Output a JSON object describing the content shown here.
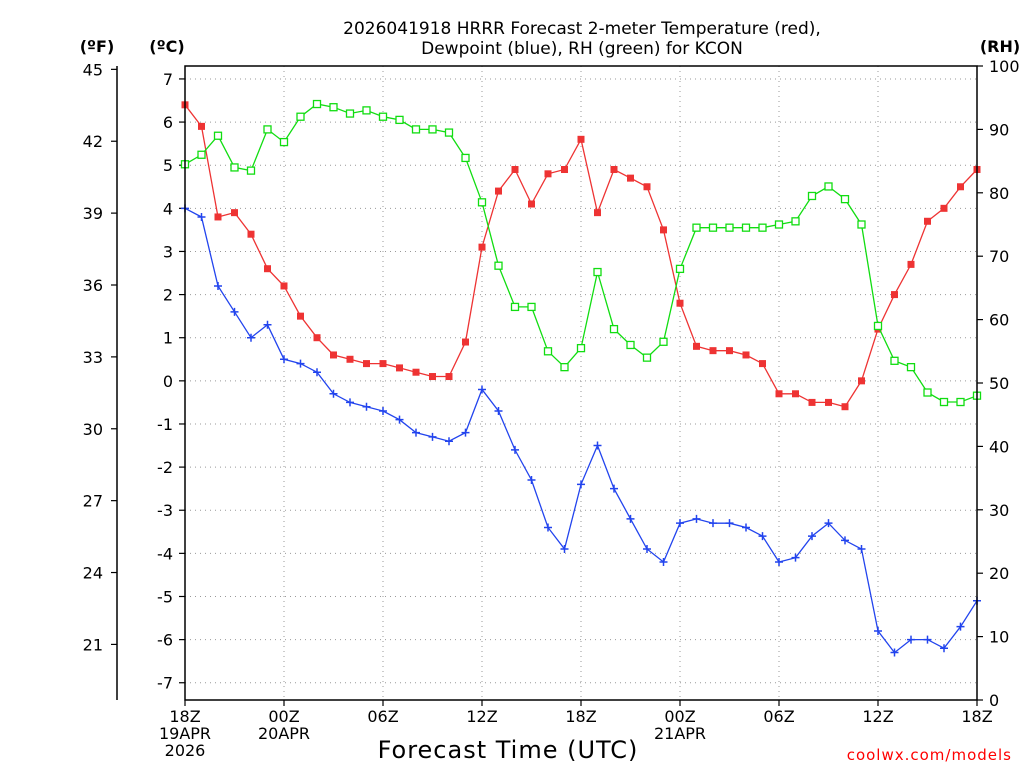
{
  "chart_data": {
    "type": "line",
    "title_lines": [
      "2026041918 HRRR Forecast 2-meter Temperature (red),",
      "Dewpoint (blue), RH (green) for KCON"
    ],
    "xlabel": "Forecast Time (UTC)",
    "credit": "coolwx.com/models",
    "units": {
      "left_f": "(ºF)",
      "left_c": "(ºC)",
      "right_rh": "(RH)"
    },
    "x_forecast_hours": {
      "start": 0,
      "end": 48,
      "step": 1
    },
    "xticks": [
      {
        "hour": 0,
        "lines": [
          "18Z",
          "19APR",
          "2026"
        ]
      },
      {
        "hour": 6,
        "lines": [
          "00Z",
          "20APR"
        ]
      },
      {
        "hour": 12,
        "lines": [
          "06Z"
        ]
      },
      {
        "hour": 18,
        "lines": [
          "12Z"
        ]
      },
      {
        "hour": 24,
        "lines": [
          "18Z"
        ]
      },
      {
        "hour": 30,
        "lines": [
          "00Z",
          "21APR"
        ]
      },
      {
        "hour": 36,
        "lines": [
          "06Z"
        ]
      },
      {
        "hour": 42,
        "lines": [
          "12Z"
        ]
      },
      {
        "hour": 48,
        "lines": [
          "18Z"
        ]
      }
    ],
    "celsius_axis": {
      "min": -7.4,
      "max": 7.3,
      "ticks": [
        -7,
        -6,
        -5,
        -4,
        -3,
        -2,
        -1,
        0,
        1,
        2,
        3,
        4,
        5,
        6,
        7
      ]
    },
    "fahrenheit_axis": {
      "ticks": [
        21,
        24,
        27,
        30,
        33,
        36,
        39,
        42,
        45
      ]
    },
    "rh_axis": {
      "min": 0,
      "max": 100,
      "ticks": [
        0,
        10,
        20,
        30,
        40,
        50,
        60,
        70,
        80,
        90,
        100
      ]
    },
    "grid": true,
    "series": [
      {
        "name": "Temperature",
        "unit": "C",
        "color": "#ee3333",
        "marker": "filled-square",
        "values": [
          6.4,
          5.9,
          3.8,
          3.9,
          3.4,
          2.6,
          2.2,
          1.5,
          1.0,
          0.6,
          0.5,
          0.4,
          0.4,
          0.3,
          0.2,
          0.1,
          0.1,
          0.9,
          3.1,
          4.4,
          4.9,
          4.1,
          4.8,
          4.9,
          5.6,
          3.9,
          4.9,
          4.7,
          4.5,
          3.5,
          1.8,
          0.8,
          0.7,
          0.7,
          0.6,
          0.4,
          -0.3,
          -0.3,
          -0.5,
          -0.5,
          -0.6,
          0.0,
          1.2,
          2.0,
          2.7,
          3.7,
          4.0,
          4.5,
          4.9
        ]
      },
      {
        "name": "Dewpoint",
        "unit": "C",
        "color": "#2244ee",
        "marker": "plus",
        "values": [
          4.0,
          3.8,
          2.2,
          1.6,
          1.0,
          1.3,
          0.5,
          0.4,
          0.2,
          -0.3,
          -0.5,
          -0.6,
          -0.7,
          -0.9,
          -1.2,
          -1.3,
          -1.4,
          -1.2,
          -0.2,
          -0.7,
          -1.6,
          -2.3,
          -3.4,
          -3.9,
          -2.4,
          -1.5,
          -2.5,
          -3.2,
          -3.9,
          -4.2,
          -3.3,
          -3.2,
          -3.3,
          -3.3,
          -3.4,
          -3.6,
          -4.2,
          -4.1,
          -3.6,
          -3.3,
          -3.7,
          -3.9,
          -5.8,
          -6.3,
          -6.0,
          -6.0,
          -6.2,
          -5.7,
          -5.1
        ]
      },
      {
        "name": "RH",
        "unit": "%",
        "color": "#11dd11",
        "marker": "open-square",
        "values": [
          84.5,
          86,
          89,
          84,
          83.5,
          90,
          88,
          92,
          94,
          93.5,
          92.5,
          93,
          92,
          91.5,
          90,
          90,
          89.5,
          85.5,
          78.5,
          68.5,
          62,
          62,
          55,
          52.5,
          55.5,
          67.5,
          58.5,
          56,
          54,
          56.5,
          68,
          74.5,
          74.5,
          74.5,
          74.5,
          74.5,
          75,
          75.5,
          79.5,
          81,
          79,
          75,
          59,
          53.5,
          52.5,
          48.5,
          47,
          47,
          48
        ]
      }
    ]
  }
}
